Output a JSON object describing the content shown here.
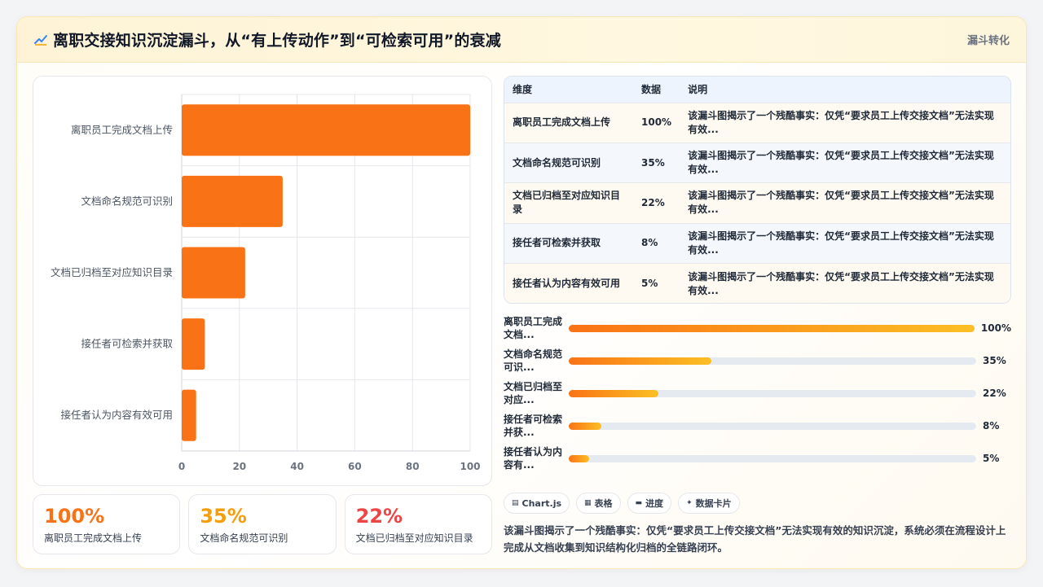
{
  "header": {
    "title": "离职交接知识沉淀漏斗，从“有上传动作”到“可检索可用”的衰减",
    "tag": "漏斗转化"
  },
  "chart_data": {
    "type": "bar",
    "orientation": "horizontal",
    "categories": [
      "离职员工完成文档上传",
      "文档命名规范可识别",
      "文档已归档至对应知识目录",
      "接任者可检索并获取",
      "接任者认为内容有效可用"
    ],
    "values": [
      100,
      35,
      22,
      8,
      5
    ],
    "xlim": [
      0,
      100
    ],
    "xticks": [
      "0",
      "20",
      "40",
      "60",
      "80",
      "100"
    ],
    "grid": true,
    "bar_color": "#f97316"
  },
  "table": {
    "headers": [
      "维度",
      "数据",
      "说明"
    ],
    "rows": [
      {
        "dim": "离职员工完成文档上传",
        "val": "100%",
        "desc": "该漏斗图揭示了一个残酷事实：仅凭“要求员工上传交接文档”无法实现有效..."
      },
      {
        "dim": "文档命名规范可识别",
        "val": "35%",
        "desc": "该漏斗图揭示了一个残酷事实：仅凭“要求员工上传交接文档”无法实现有效..."
      },
      {
        "dim": "文档已归档至对应知识目录",
        "val": "22%",
        "desc": "该漏斗图揭示了一个残酷事实：仅凭“要求员工上传交接文档”无法实现有效..."
      },
      {
        "dim": "接任者可检索并获取",
        "val": "8%",
        "desc": "该漏斗图揭示了一个残酷事实：仅凭“要求员工上传交接文档”无法实现有效..."
      },
      {
        "dim": "接任者认为内容有效可用",
        "val": "5%",
        "desc": "该漏斗图揭示了一个残酷事实：仅凭“要求员工上传交接文档”无法实现有效..."
      }
    ]
  },
  "progress": [
    {
      "label": "离职员工完成文档...",
      "value": 100,
      "text": "100%"
    },
    {
      "label": "文档命名规范可识...",
      "value": 35,
      "text": "35%"
    },
    {
      "label": "文档已归档至对应...",
      "value": 22,
      "text": "22%"
    },
    {
      "label": "接任者可检索并获...",
      "value": 8,
      "text": "8%"
    },
    {
      "label": "接任者认为内容有...",
      "value": 5,
      "text": "5%"
    }
  ],
  "kpis": [
    {
      "value": "100%",
      "label": "离职员工完成文档上传",
      "color": "#f97316"
    },
    {
      "value": "35%",
      "label": "文档命名规范可识别",
      "color": "#f59e0b"
    },
    {
      "value": "22%",
      "label": "文档已归档至对应知识目录",
      "color": "#ef4444"
    }
  ],
  "chips": [
    {
      "icon": "chart-icon",
      "glyph": "▤",
      "label": "Chart.js"
    },
    {
      "icon": "table-icon",
      "glyph": "▦",
      "label": "表格"
    },
    {
      "icon": "progress-icon",
      "glyph": "▬",
      "label": "进度"
    },
    {
      "icon": "card-icon",
      "glyph": "✦",
      "label": "数据卡片"
    }
  ],
  "summary": "该漏斗图揭示了一个残酷事实：仅凭“要求员工上传交接文档”无法实现有效的知识沉淀，系统必须在流程设计上完成从文档收集到知识结构化归档的全链路闭环。"
}
